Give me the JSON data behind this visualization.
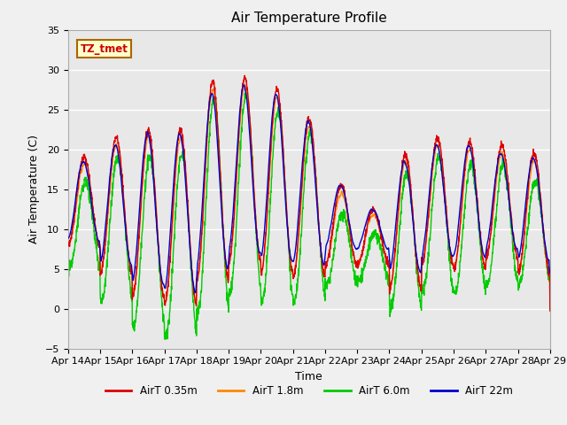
{
  "title": "Air Temperature Profile",
  "xlabel": "Time",
  "ylabel": "Air Temperature (C)",
  "ylim": [
    -5,
    35
  ],
  "xlim": [
    0,
    15
  ],
  "x_tick_labels": [
    "Apr 14",
    "Apr 15",
    "Apr 16",
    "Apr 17",
    "Apr 18",
    "Apr 19",
    "Apr 20",
    "Apr 21",
    "Apr 22",
    "Apr 23",
    "Apr 24",
    "Apr 25",
    "Apr 26",
    "Apr 27",
    "Apr 28",
    "Apr 29"
  ],
  "colors": {
    "AirT 0.35m": "#dd0000",
    "AirT 1.8m": "#ff8800",
    "AirT 6.0m": "#00cc00",
    "AirT 22m": "#0000cc"
  },
  "legend_labels": [
    "AirT 0.35m",
    "AirT 1.8m",
    "AirT 6.0m",
    "AirT 22m"
  ],
  "annotation_text": "TZ_tmet",
  "annotation_bg": "#ffffcc",
  "annotation_border": "#aa6600",
  "background_color": "#e8e8e8",
  "grid_color": "#ffffff",
  "title_fontsize": 11,
  "axis_fontsize": 9,
  "tick_fontsize": 8
}
